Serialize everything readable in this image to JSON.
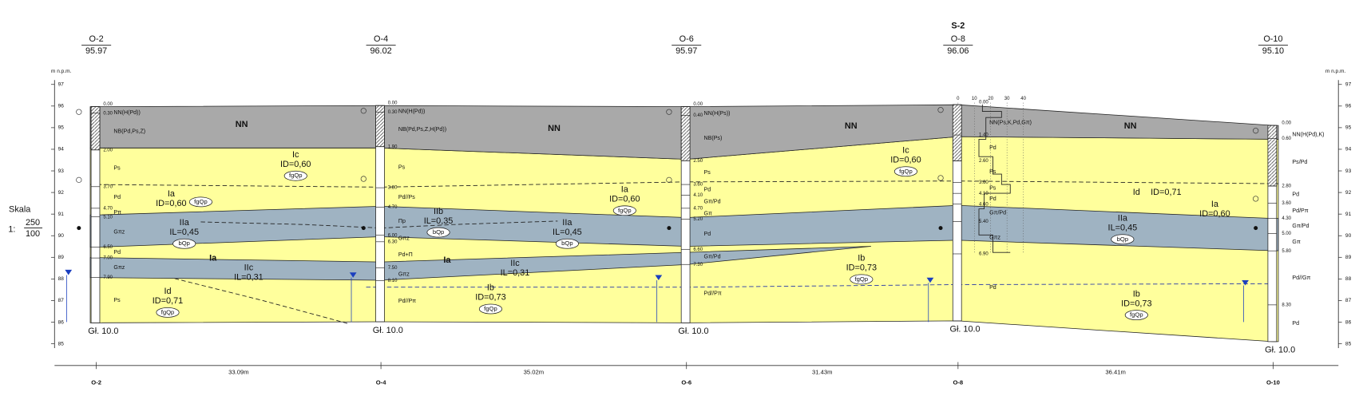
{
  "section": "S-2",
  "boreholes": [
    {
      "name": "O-2",
      "elevation": "95.97",
      "total_depth": "Gł. 10.0",
      "depths": [
        "0.00",
        "0.30",
        "2.00",
        "3.70",
        "4.70",
        "5.10",
        "6.50",
        "7.00",
        "7.90"
      ],
      "soils": [
        "NN(H(Pd))",
        "NB(Pd,Ps,Z)",
        "Ps",
        "Pd",
        "Pπ",
        "Gπz",
        "Pd",
        "Gπz",
        "Ps"
      ]
    },
    {
      "name": "O-4",
      "elevation": "96.02",
      "total_depth": "Gł. 10.0",
      "depths": [
        "0.00",
        "0.30",
        "1.90",
        "3.80",
        "4.70",
        "6.00",
        "6.30",
        "7.50",
        "8.10"
      ],
      "soils": [
        "NN(H(Pd))",
        "NB(Pd,Ps,Z,H(Pd))",
        "Ps",
        "Pd//Ps",
        "Πp",
        "Gπz",
        "Pd+Π",
        "Gπz",
        "Pd//Pπ"
      ]
    },
    {
      "name": "O-6",
      "elevation": "95.97",
      "total_depth": "Gł. 10.0",
      "depths": [
        "0.00",
        "0.40",
        "2.50",
        "3.60",
        "4.10",
        "4.70",
        "5.20",
        "6.60",
        "7.30"
      ],
      "soils": [
        "NN(H(Ps))",
        "NB(Ps)",
        "Ps",
        "Pd",
        "Gπ/Pd",
        "Gπ",
        "Pd",
        "Gπ/Pd",
        "Pd//Pπ"
      ]
    },
    {
      "name": "O-8",
      "elevation": "96.06",
      "total_depth": "Gł. 10.0",
      "depths": [
        "0.00",
        "1.40",
        "2.60",
        "3.60",
        "4.10",
        "4.60",
        "5.40",
        "6.90"
      ],
      "soils": [
        "NN(Ps,K,Pd,Gπ)",
        "Pd",
        "Ps",
        "Ps",
        "Pd",
        "Gπ/Pd",
        "Gπz",
        "Pd"
      ]
    },
    {
      "name": "O-10",
      "elevation": "95.10",
      "total_depth": "Gł. 10.0",
      "depths": [
        "0.00",
        "0.60",
        "2.80",
        "3.60",
        "4.30",
        "5.00",
        "5.80",
        "8.30"
      ],
      "soils": [
        "NN(H(Pd),K)",
        "Ps/Pd",
        "Pd",
        "Pd/Pπ",
        "Gπ/Pd",
        "Gπ",
        "Pd//Gπ",
        "Pd"
      ]
    }
  ],
  "elevation_axis": {
    "unit": "m n.p.m.",
    "ticks": [
      97,
      96,
      95,
      94,
      93,
      92,
      91,
      90,
      89,
      88,
      87,
      86,
      85
    ]
  },
  "scale": {
    "label": "Skala",
    "ratio": "1:",
    "horizontal": "250",
    "vertical": "100"
  },
  "distances": [
    "33.09m",
    "35.02m",
    "31.43m",
    "36.41m"
  ],
  "cpt_ticks": [
    "0",
    "10",
    "20",
    "30",
    "40"
  ],
  "units": [
    {
      "name": "NN"
    },
    {
      "name": "NN"
    },
    {
      "name": "NN"
    },
    {
      "name": "NN"
    },
    {
      "name": "Ic",
      "param": "ID=0,60",
      "genesis": "fgQp"
    },
    {
      "name": "Ic",
      "param": "ID=0,60",
      "genesis": "fgQp"
    },
    {
      "name": "Ia",
      "param": "ID=0,60",
      "genesis": "fgQp"
    },
    {
      "name": "Ia",
      "param": "ID=0,60",
      "genesis": "fgQp"
    },
    {
      "name": "Ia",
      "param": "ID=0,60"
    },
    {
      "name": "Id",
      "param": "ID=0,71"
    },
    {
      "name": "IIb",
      "param": "IL=0,35",
      "genesis": "bQp"
    },
    {
      "name": "IIa",
      "param": "IL=0,45",
      "genesis": "bQp"
    },
    {
      "name": "IIa",
      "param": "IL=0,45",
      "genesis": "bQp"
    },
    {
      "name": "IIa",
      "param": "IL=0,45",
      "genesis": "bQp"
    },
    {
      "name": "Ia"
    },
    {
      "name": "Ia"
    },
    {
      "name": "IIc",
      "param": "IL=0,31"
    },
    {
      "name": "IIc",
      "param": "IL=0,31"
    },
    {
      "name": "Ib",
      "param": "ID=0,73",
      "genesis": "fgQp"
    },
    {
      "name": "Id",
      "param": "ID=0,71",
      "genesis": "fgQp"
    },
    {
      "name": "Ib",
      "param": "ID=0,73",
      "genesis": "fgQp"
    },
    {
      "name": "Ib",
      "param": "ID=0,73",
      "genesis": "fgQp"
    }
  ]
}
